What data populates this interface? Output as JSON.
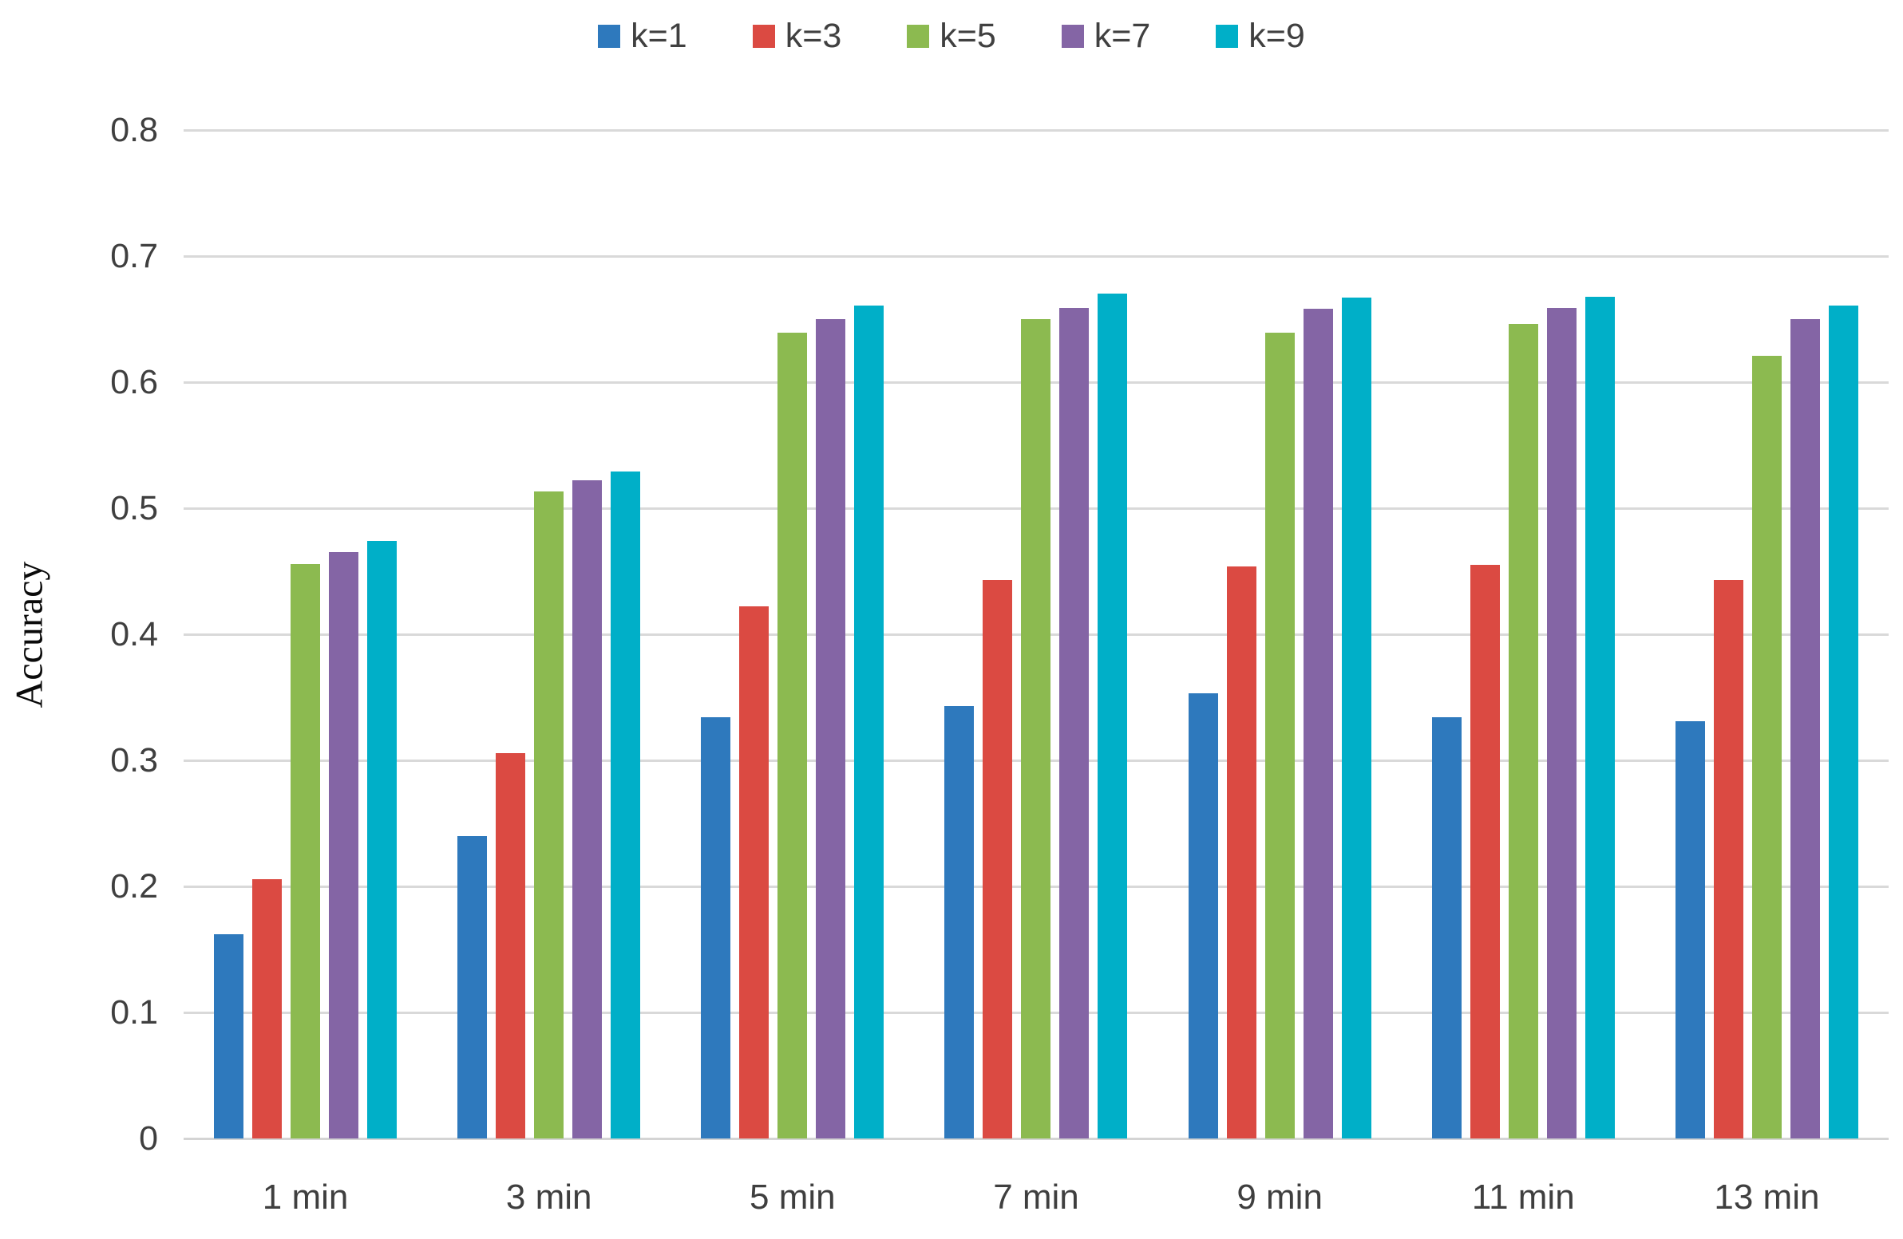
{
  "chart_data": {
    "type": "bar",
    "title": "",
    "xlabel": "",
    "ylabel": "Accuracy",
    "ylim": [
      0,
      0.8
    ],
    "ytick_step": 0.1,
    "yticks": [
      "0",
      "0.1",
      "0.2",
      "0.3",
      "0.4",
      "0.5",
      "0.6",
      "0.7",
      "0.8"
    ],
    "grid": "horizontal",
    "legend_position": "top-center",
    "categories": [
      "1 min",
      "3 min",
      "5 min",
      "7 min",
      "9 min",
      "11 min",
      "13 min"
    ],
    "series": [
      {
        "name": "k=1",
        "color": "#2E79BD",
        "values": [
          0.162,
          0.24,
          0.334,
          0.343,
          0.353,
          0.334,
          0.331
        ]
      },
      {
        "name": "k=3",
        "color": "#DB4A42",
        "values": [
          0.206,
          0.306,
          0.422,
          0.443,
          0.454,
          0.455,
          0.443
        ]
      },
      {
        "name": "k=5",
        "color": "#8CBA50",
        "values": [
          0.456,
          0.513,
          0.639,
          0.65,
          0.639,
          0.646,
          0.621
        ]
      },
      {
        "name": "k=7",
        "color": "#8465A5",
        "values": [
          0.465,
          0.522,
          0.65,
          0.659,
          0.658,
          0.659,
          0.65
        ]
      },
      {
        "name": "k=9",
        "color": "#00AFC8",
        "values": [
          0.474,
          0.529,
          0.661,
          0.67,
          0.667,
          0.668,
          0.661
        ]
      }
    ]
  },
  "colors": {
    "background": "#FFFFFF",
    "gridline": "#D9D9D9",
    "axis_line": "#D4D4D4",
    "axis_text": "#3F3F3F",
    "legend_text": "#404040",
    "y_title_text": "#0A0A0A"
  }
}
